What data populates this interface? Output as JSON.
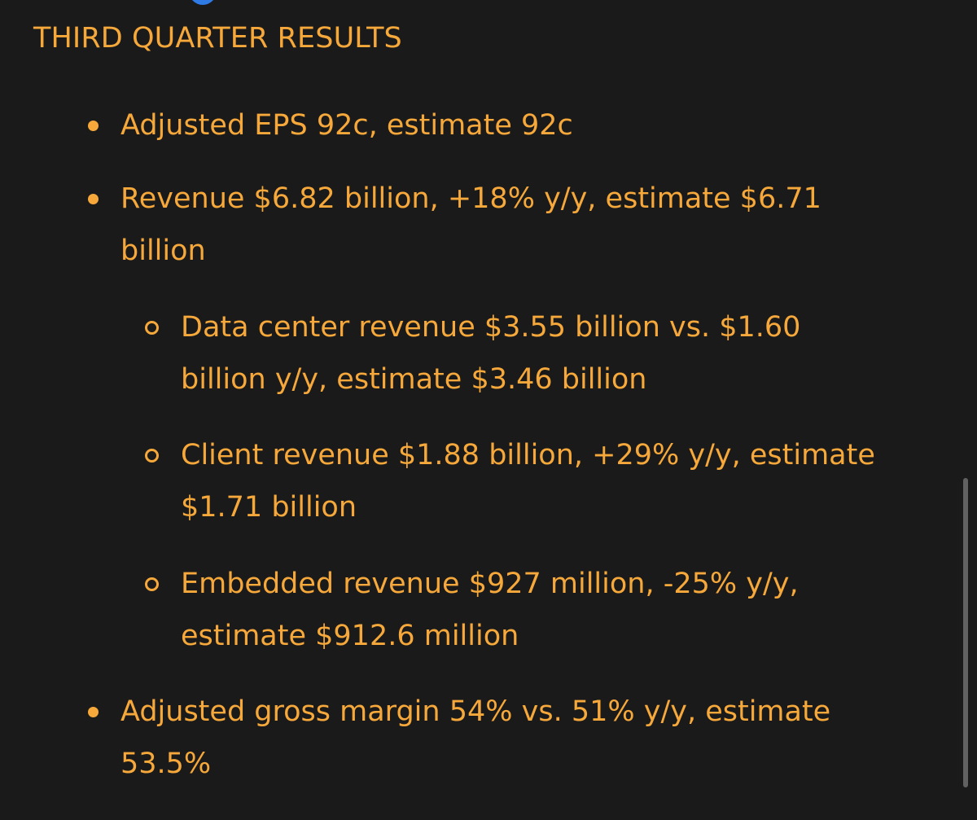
{
  "section": {
    "title": "THIRD QUARTER RESULTS"
  },
  "results": [
    {
      "text": "Adjusted EPS 92c, estimate 92c"
    },
    {
      "text": "Revenue $6.82 billion, +18% y/y, estimate $6.71\nbillion"
    },
    {
      "text": "Data center revenue $3.55 billion vs. $1.60\nbillion y/y, estimate $3.46 billion"
    },
    {
      "text": "Client revenue $1.88 billion, +29% y/y, estimate\n$1.71 billion"
    },
    {
      "text": "Embedded revenue $927 million, -25% y/y,\nestimate $912.6 million"
    },
    {
      "text": "Adjusted gross margin 54% vs. 51% y/y, estimate\n53.5%"
    }
  ],
  "colors": {
    "background": "#1a1a1a",
    "text": "#f6a83b",
    "scroll_thumb": "#7a7a7a",
    "avatar_fragment": "#2f7be6"
  }
}
